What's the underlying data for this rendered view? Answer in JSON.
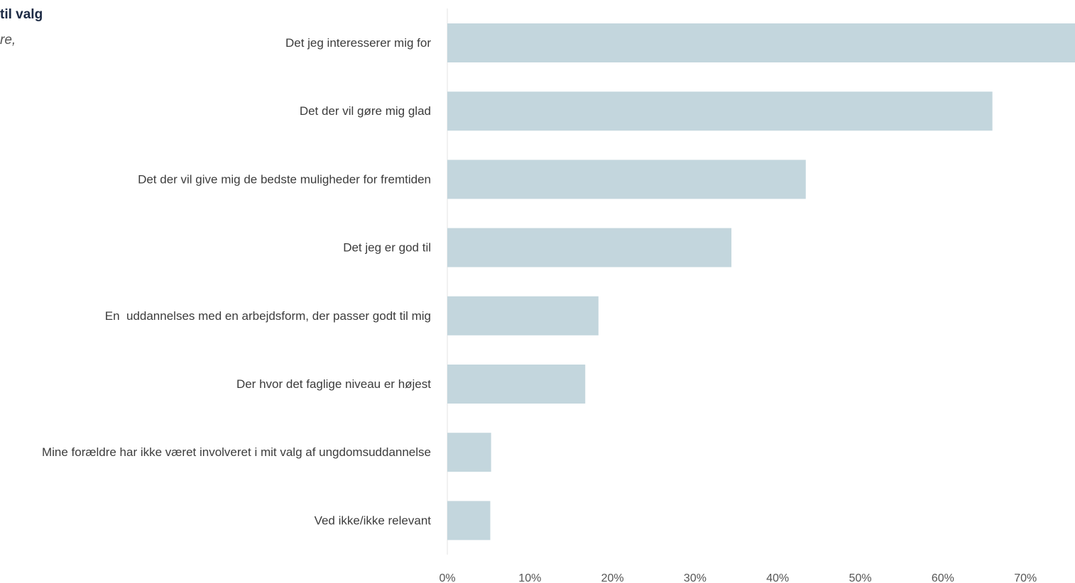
{
  "header": {
    "title_fragment": "til valg",
    "subtitle_fragment": "re,"
  },
  "colors": {
    "bar": "#c3d6dd",
    "axis": "#e3e3e3",
    "label": "#3c3c3c",
    "title": "#1c2a44"
  },
  "chart_data": {
    "type": "bar",
    "orientation": "horizontal",
    "categories": [
      "Det jeg interesserer mig for",
      "Det der vil gøre mig glad",
      "Det der vil give mig de bedste muligheder for fremtiden",
      "Det jeg er god til",
      "En  uddannelses med en arbejdsform, der passer godt til mig",
      "Der hvor det faglige niveau er højest",
      "Mine forældre har ikke været involveret i mit valg af ungdomsuddannelse",
      "Ved ikke/ikke relevant"
    ],
    "values": [
      76,
      66,
      43.4,
      34.4,
      18.3,
      16.7,
      5.3,
      5.2
    ],
    "xlim": [
      0,
      76
    ],
    "xticks": [
      0,
      10,
      20,
      30,
      40,
      50,
      60,
      70
    ],
    "xtick_labels": [
      "0%",
      "10%",
      "20%",
      "30%",
      "40%",
      "50%",
      "60%",
      "70%"
    ],
    "grid": false,
    "legend": "none"
  }
}
